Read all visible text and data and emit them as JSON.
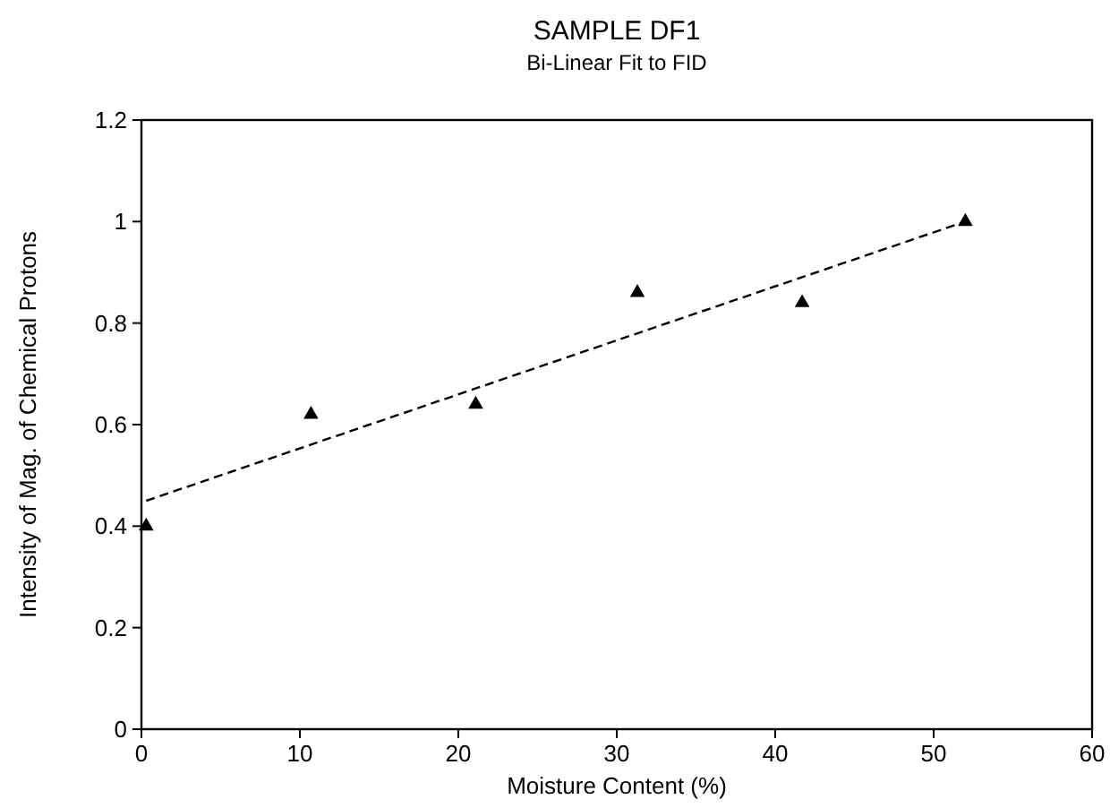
{
  "chart_data": {
    "type": "scatter",
    "title": "SAMPLE DF1",
    "subtitle": "Bi-Linear Fit to FID",
    "xlabel": "Moisture Content (%)",
    "ylabel": "Intensity of Mag. of Chemical Protons",
    "xlim": [
      0,
      60
    ],
    "xticks": [
      0,
      10,
      20,
      30,
      40,
      50,
      60
    ],
    "ylim": [
      0,
      1.2
    ],
    "yticks": [
      0,
      0.2,
      0.4,
      0.6,
      0.8,
      1,
      1.2
    ],
    "grid": false,
    "series": [
      {
        "color": "#000000",
        "marker": "triangle",
        "x": [
          0.3,
          10.7,
          21.1,
          31.3,
          41.7,
          52
        ],
        "values": [
          0.4,
          0.62,
          0.64,
          0.86,
          0.84,
          1.0
        ]
      },
      {
        "type": "line",
        "color": "#000000",
        "line_style": "dashed",
        "marker": "none",
        "x": [
          0.3,
          52
        ],
        "values": [
          0.45,
          1.0
        ]
      }
    ]
  }
}
